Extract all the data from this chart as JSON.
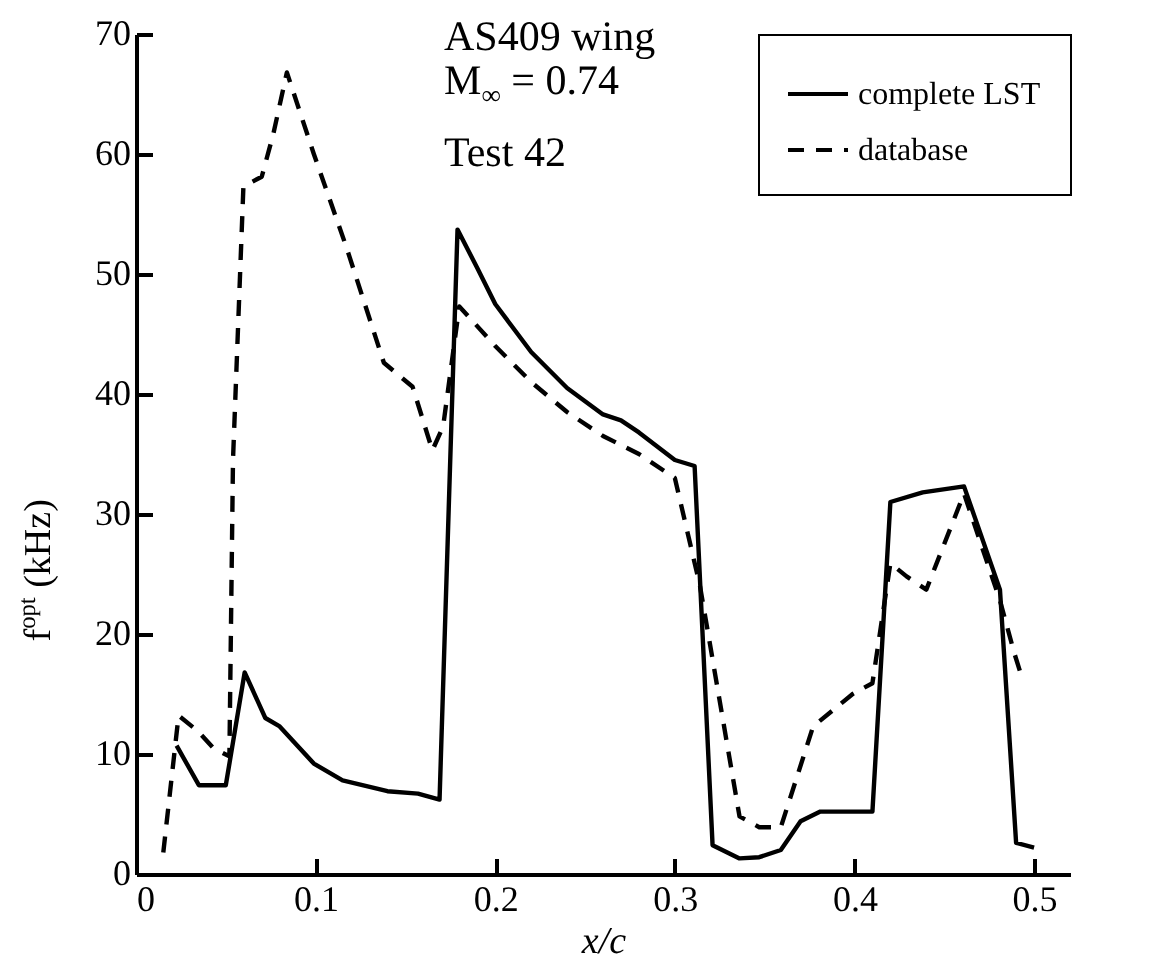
{
  "chart_data": {
    "type": "line",
    "xlabel": "x/c",
    "ylabel": "f$^{opt}$ (kHz)",
    "annotations": [
      "AS409 wing",
      "M$_{∞}$ = 0.74",
      "Test 42"
    ],
    "xlim": [
      0,
      0.52
    ],
    "xticks": [
      0,
      0.1,
      0.2,
      0.3,
      0.4,
      0.5
    ],
    "ylim": [
      0,
      70
    ],
    "yticks": [
      0,
      10,
      20,
      30,
      40,
      50,
      60,
      70
    ],
    "grid": false,
    "legend": "top right",
    "marker": "none",
    "series": [
      {
        "name": "complete LST",
        "color": "#000000",
        "line_style": "solid",
        "x": [
          0.0226,
          0.035,
          0.05,
          0.0605,
          0.072,
          0.08,
          0.099,
          0.115,
          0.14,
          0.157,
          0.169,
          0.179,
          0.19,
          0.2,
          0.22,
          0.24,
          0.26,
          0.27,
          0.28,
          0.3,
          0.311,
          0.321,
          0.336,
          0.347,
          0.359,
          0.37,
          0.381,
          0.41,
          0.42,
          0.438,
          0.461,
          0.481,
          0.49,
          0.5
        ],
        "values": [
          10.7,
          7.4,
          7.4,
          16.8,
          13,
          12.3,
          9.2,
          7.8,
          6.9,
          6.7,
          6.2,
          53.7,
          50.5,
          47.5,
          43.5,
          40.5,
          38.3,
          37.8,
          36.8,
          34.5,
          34,
          2.4,
          1.3,
          1.4,
          2,
          4.4,
          5.2,
          5.2,
          31,
          31.8,
          32.3,
          23.7,
          2.6,
          2.2
        ]
      },
      {
        "name": "database",
        "color": "#000000",
        "line_style": "dashed",
        "x": [
          0.0152,
          0.0237,
          0.0345,
          0.043,
          0.052,
          0.054,
          0.0598,
          0.07,
          0.0765,
          0.084,
          0.099,
          0.117,
          0.138,
          0.154,
          0.165,
          0.171,
          0.18,
          0.2,
          0.22,
          0.24,
          0.26,
          0.28,
          0.3,
          0.314,
          0.336,
          0.347,
          0.359,
          0.377,
          0.399,
          0.41,
          0.42,
          0.429,
          0.44,
          0.461,
          0.481,
          0.489,
          0.493
        ],
        "values": [
          1.8,
          13.2,
          11.9,
          10.5,
          9.8,
          34.5,
          57.3,
          58.1,
          61.7,
          66.8,
          60,
          52.3,
          42.6,
          40.6,
          35.3,
          37.3,
          47.3,
          44,
          41,
          38.5,
          36.5,
          35,
          33,
          24,
          4.8,
          3.9,
          3.9,
          12.3,
          15,
          15.9,
          25.9,
          24.8,
          23.7,
          31.7,
          22.8,
          18.4,
          16.5
        ]
      }
    ]
  }
}
